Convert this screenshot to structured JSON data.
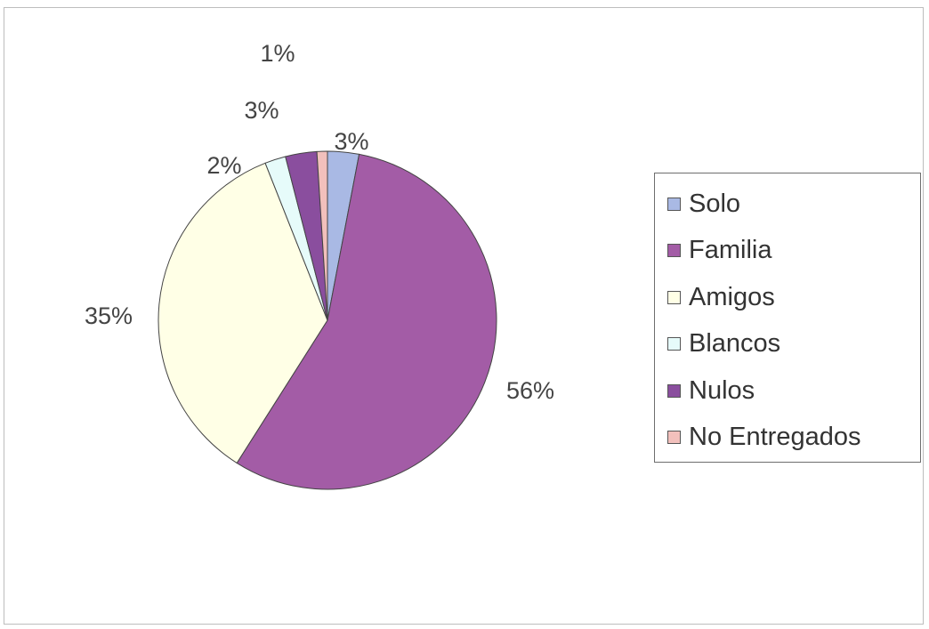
{
  "chart_data": {
    "type": "pie",
    "categories": [
      "Solo",
      "Familia",
      "Amigos",
      "Blancos",
      "Nulos",
      "No Entregados"
    ],
    "values": [
      3,
      56,
      35,
      2,
      3,
      1
    ],
    "labels": [
      "3%",
      "56%",
      "35%",
      "2%",
      "3%",
      "1%"
    ],
    "colors": [
      "#a9b9e4",
      "#a35ca6",
      "#ffffe6",
      "#e6fbfa",
      "#8a4e9e",
      "#f2c0bc"
    ],
    "start_angle_deg": 0,
    "direction": "clockwise",
    "legend": {
      "position": "right"
    }
  }
}
